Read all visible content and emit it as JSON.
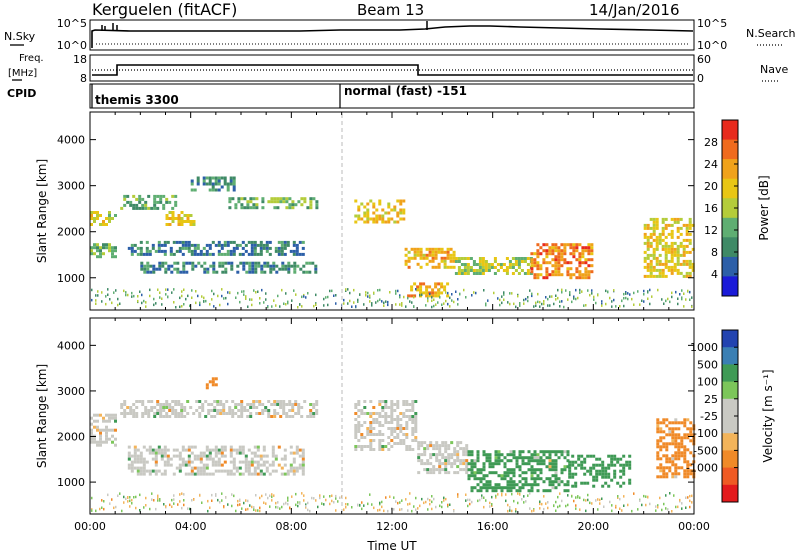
{
  "header": {
    "station": "Kerguelen (fitACF)",
    "beam": "Beam 13",
    "date": "14/Jan/2016"
  },
  "panels": {
    "nsky": {
      "left_label": "N.Sky",
      "left_ticks": [
        "10^5",
        "10^0"
      ],
      "right_label": "N.Search",
      "right_ticks": [
        "10^5",
        "10^0"
      ]
    },
    "freq": {
      "left_label_1": "Freq.",
      "left_label_2": "[MHz]",
      "left_ticks": [
        "18",
        "8"
      ],
      "right_label": "Nave",
      "right_ticks": [
        "60",
        "0"
      ],
      "cpid_label": "CPID"
    },
    "cpid": {
      "mode_1": "themis 3300",
      "mode_2": "normal (fast) -151"
    }
  },
  "colors": {
    "power_scale": [
      "#1b1bd8",
      "#2c5fa8",
      "#3f8a66",
      "#5fae72",
      "#b4cc3a",
      "#e8c614",
      "#f0a21a",
      "#ef6a1d",
      "#e82a1c"
    ],
    "velocity_scale": [
      "#e31a1c",
      "#ef5a24",
      "#f08a28",
      "#f3b45a",
      "#c9c9c3",
      "#c9c9c3",
      "#7cc65a",
      "#3f9a55",
      "#3a7fb3",
      "#2243b0"
    ]
  },
  "chart_data": [
    {
      "type": "heatmap",
      "quantity": "power",
      "ylabel": "Slant Range [km]",
      "yticks": [
        "1000",
        "2000",
        "3000",
        "4000"
      ],
      "ylim": [
        300,
        4600
      ],
      "xlim_hours": [
        0,
        24
      ],
      "colorbar_label": "Power [dB]",
      "colorbar_ticks": [
        "4",
        "8",
        "12",
        "16",
        "20",
        "24",
        "28"
      ],
      "colorbar_range": [
        0,
        32
      ],
      "regions": [
        {
          "t": [
            0.0,
            1.0
          ],
          "r": [
            2150,
            2450
          ],
          "level": 18
        },
        {
          "t": [
            0.0,
            1.0
          ],
          "r": [
            1450,
            1750
          ],
          "level": 12
        },
        {
          "t": [
            1.2,
            3.4
          ],
          "r": [
            2500,
            2800
          ],
          "level": 11
        },
        {
          "t": [
            3.0,
            4.2
          ],
          "r": [
            2150,
            2450
          ],
          "level": 19
        },
        {
          "t": [
            4.0,
            5.8
          ],
          "r": [
            2900,
            3200
          ],
          "level": 9
        },
        {
          "t": [
            5.5,
            9.0
          ],
          "r": [
            2500,
            2750
          ],
          "level": 12
        },
        {
          "t": [
            2.0,
            9.0
          ],
          "r": [
            1150,
            1350
          ],
          "level": 8
        },
        {
          "t": [
            1.5,
            8.5
          ],
          "r": [
            1500,
            1800
          ],
          "level": 7
        },
        {
          "t": [
            10.5,
            12.5
          ],
          "r": [
            2200,
            2700
          ],
          "level": 20
        },
        {
          "t": [
            12.5,
            14.5
          ],
          "r": [
            1250,
            1650
          ],
          "level": 22
        },
        {
          "t": [
            12.6,
            14.2
          ],
          "r": [
            600,
            900
          ],
          "level": 23
        },
        {
          "t": [
            14.5,
            17.5
          ],
          "r": [
            1100,
            1450
          ],
          "level": 16
        },
        {
          "t": [
            17.5,
            20.0
          ],
          "r": [
            1000,
            1750
          ],
          "level": 26
        },
        {
          "t": [
            22.0,
            24.0
          ],
          "r": [
            1000,
            2300
          ],
          "level": 20
        }
      ]
    },
    {
      "type": "heatmap",
      "quantity": "velocity",
      "ylabel": "Slant Range [km]",
      "yticks": [
        "1000",
        "2000",
        "3000",
        "4000"
      ],
      "ylim": [
        300,
        4600
      ],
      "xlim_hours": [
        0,
        24
      ],
      "xticks": [
        "00:00",
        "04:00",
        "08:00",
        "12:00",
        "16:00",
        "20:00",
        "00:00"
      ],
      "xlabel": "Time UT",
      "colorbar_label": "Velocity [m s⁻¹]",
      "colorbar_ticks": [
        "1000",
        "500",
        "100",
        "25",
        "-25",
        "-100",
        "-500",
        "-1000"
      ],
      "regions": [
        {
          "t": [
            0.0,
            1.0
          ],
          "r": [
            1800,
            2500
          ],
          "velocity": 0
        },
        {
          "t": [
            1.2,
            9.0
          ],
          "r": [
            2450,
            2800
          ],
          "velocity": 0
        },
        {
          "t": [
            4.6,
            5.0
          ],
          "r": [
            3050,
            3300
          ],
          "velocity": -200
        },
        {
          "t": [
            1.5,
            8.5
          ],
          "r": [
            1150,
            1800
          ],
          "velocity": 0
        },
        {
          "t": [
            10.5,
            13.0
          ],
          "r": [
            1700,
            2800
          ],
          "velocity": 0
        },
        {
          "t": [
            13.0,
            15.0
          ],
          "r": [
            1200,
            1900
          ],
          "velocity": 0
        },
        {
          "t": [
            15.0,
            19.0
          ],
          "r": [
            800,
            1700
          ],
          "velocity": 150
        },
        {
          "t": [
            19.0,
            21.5
          ],
          "r": [
            900,
            1600
          ],
          "velocity": 300
        },
        {
          "t": [
            22.5,
            24.0
          ],
          "r": [
            1100,
            2400
          ],
          "velocity": -150
        }
      ]
    }
  ]
}
